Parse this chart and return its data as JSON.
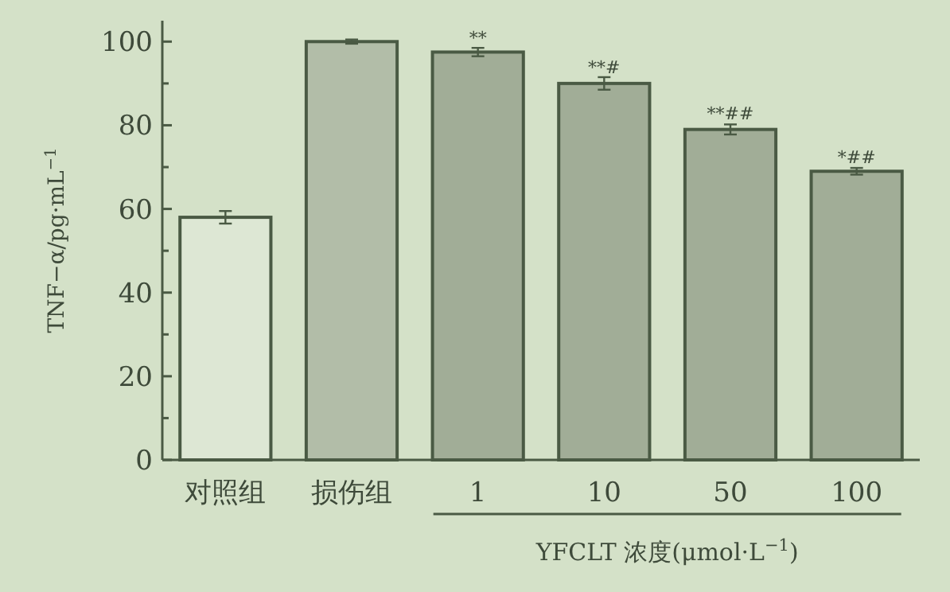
{
  "chart_data": {
    "type": "bar",
    "ylabel": "TNF−α/pg·mL$^{−1}$",
    "xlabel": "YFCLT 浓度(μmol·L$^{−1}$)",
    "categories": [
      "对照组",
      "损伤组",
      "1",
      "10",
      "50",
      "100"
    ],
    "values": [
      58,
      100,
      97.5,
      90,
      79,
      69
    ],
    "errors": [
      1.5,
      0.5,
      1,
      1.5,
      1.2,
      0.8
    ],
    "colors": [
      "#dde7d4",
      "#b2bda8",
      "#a1ad97",
      "#a1ad97",
      "#a1ad97",
      "#a1ad97"
    ],
    "ylim": [
      0,
      105
    ],
    "yticks": [
      0,
      {
        "value": 10,
        "label": null
      },
      20,
      {
        "value": 30,
        "label": null
      },
      40,
      {
        "value": 50,
        "label": null
      },
      60,
      {
        "value": 70,
        "label": null
      },
      80,
      {
        "value": 90,
        "label": null
      },
      100
    ],
    "annotations": [
      {
        "text": "**",
        "x": "1",
        "y": 99.5
      },
      {
        "text": "**#",
        "x": "10",
        "y": 92.5
      },
      {
        "text": "**##",
        "x": "50",
        "y": 81.5
      },
      {
        "text": "*##",
        "x": "100",
        "y": 71
      }
    ]
  }
}
